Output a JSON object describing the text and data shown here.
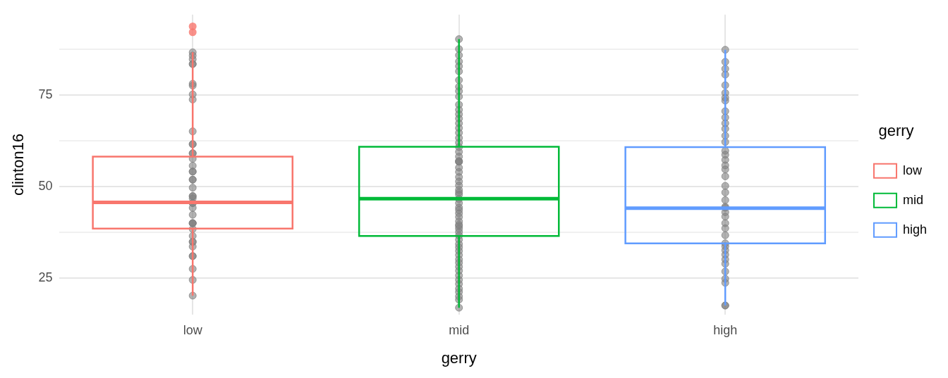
{
  "chart_data": {
    "type": "box",
    "xlabel": "gerry",
    "ylabel": "clinton16",
    "legend_title": "gerry",
    "legend": "right",
    "grid": true,
    "categories": [
      "low",
      "mid",
      "high"
    ],
    "series": [
      {
        "name": "low",
        "color": "#f8766d",
        "x": [
          "low"
        ],
        "boxes": [
          {
            "low": 20.2,
            "q1": 38.5,
            "median": 45.7,
            "q3": 58.2,
            "high": 86.7,
            "outliers": [
              93.8,
              92.2
            ]
          }
        ]
      },
      {
        "name": "mid",
        "color": "#00ba38",
        "x": [
          "mid"
        ],
        "boxes": [
          {
            "low": 16.9,
            "q1": 36.5,
            "median": 46.7,
            "q3": 60.9,
            "high": 90.3
          }
        ]
      },
      {
        "name": "high",
        "color": "#619cff",
        "x": [
          "high"
        ],
        "boxes": [
          {
            "low": 17.5,
            "q1": 34.5,
            "median": 44.1,
            "q3": 60.8,
            "high": 87.4
          }
        ]
      },
      {
        "type": "scatter",
        "color": "#808080",
        "x": [
          "low",
          "low",
          "low",
          "low",
          "low",
          "low",
          "low",
          "low",
          "low",
          "low",
          "low",
          "low",
          "low",
          "low",
          "low",
          "low",
          "low",
          "low",
          "low",
          "low",
          "low",
          "low",
          "low",
          "low",
          "low",
          "low",
          "low",
          "low",
          "low",
          "low",
          "low",
          "low",
          "low",
          "low",
          "low",
          "low",
          "low",
          "low",
          "low",
          "low",
          "low",
          "mid",
          "mid",
          "mid",
          "mid",
          "mid",
          "mid",
          "mid",
          "mid",
          "mid",
          "mid",
          "mid",
          "mid",
          "mid",
          "mid",
          "mid",
          "mid",
          "mid",
          "mid",
          "mid",
          "mid",
          "mid",
          "mid",
          "mid",
          "mid",
          "mid",
          "mid",
          "mid",
          "mid",
          "mid",
          "mid",
          "mid",
          "mid",
          "mid",
          "mid",
          "mid",
          "mid",
          "mid",
          "mid",
          "mid",
          "mid",
          "mid",
          "mid",
          "mid",
          "mid",
          "mid",
          "mid",
          "mid",
          "mid",
          "mid",
          "mid",
          "mid",
          "mid",
          "mid",
          "mid",
          "mid",
          "mid",
          "mid",
          "mid",
          "mid",
          "mid",
          "mid",
          "mid",
          "high",
          "high",
          "high",
          "high",
          "high",
          "high",
          "high",
          "high",
          "high",
          "high",
          "high",
          "high",
          "high",
          "high",
          "high",
          "high",
          "high",
          "high",
          "high",
          "high",
          "high",
          "high",
          "high",
          "high",
          "high",
          "high",
          "high",
          "high",
          "high",
          "high",
          "high",
          "high",
          "high",
          "high",
          "high",
          "high",
          "high",
          "high",
          "high",
          "high",
          "high"
        ],
        "values": [
          86.7,
          85.8,
          84.8,
          83.5,
          83.5,
          78.1,
          77.6,
          75.2,
          73.8,
          65.1,
          61.6,
          61.6,
          59.1,
          59.1,
          57.6,
          55.7,
          54.1,
          54.1,
          51.9,
          51.9,
          49.7,
          47.4,
          47.4,
          46.8,
          45.5,
          45.5,
          44.2,
          42.3,
          40.0,
          40.0,
          40.0,
          38.4,
          36.5,
          34.9,
          34.9,
          33.6,
          31.0,
          31.0,
          27.5,
          24.5,
          20.2,
          90.3,
          87.6,
          85.9,
          84.2,
          82.9,
          81.5,
          79.1,
          77.3,
          76.1,
          74.6,
          72.4,
          71.0,
          69.8,
          68.6,
          67.3,
          66.0,
          64.7,
          63.3,
          62.0,
          60.8,
          59.5,
          58.2,
          57.0,
          56.8,
          56.8,
          55.2,
          54.0,
          52.6,
          51.4,
          50.3,
          49.1,
          48.4,
          47.8,
          46.6,
          45.5,
          44.3,
          43.6,
          42.7,
          41.7,
          40.5,
          39.6,
          39.2,
          38.5,
          37.6,
          36.6,
          35.5,
          34.3,
          33.4,
          32.4,
          31.3,
          30.1,
          29.2,
          28.1,
          27.0,
          25.7,
          24.5,
          23.4,
          22.1,
          21.2,
          20.0,
          19.1,
          16.9,
          87.4,
          84.1,
          82.2,
          80.6,
          77.7,
          75.6,
          74.3,
          73.5,
          70.6,
          68.9,
          67.3,
          65.8,
          63.9,
          62.2,
          59.8,
          58.7,
          57.3,
          55.8,
          54.7,
          52.8,
          50.2,
          48.4,
          46.3,
          44.5,
          44.2,
          43.0,
          41.8,
          40.0,
          38.6,
          36.7,
          34.5,
          33.7,
          32.6,
          31.4,
          30.1,
          28.9,
          26.8,
          24.8,
          23.7,
          17.5,
          17.5
        ]
      }
    ],
    "ylim": [
      15,
      97
    ],
    "yticks": [
      25,
      {
        "value": 37.5,
        "label": null
      },
      50,
      {
        "value": 62.5,
        "label": null
      },
      75,
      {
        "value": 87.5,
        "label": null
      }
    ]
  }
}
